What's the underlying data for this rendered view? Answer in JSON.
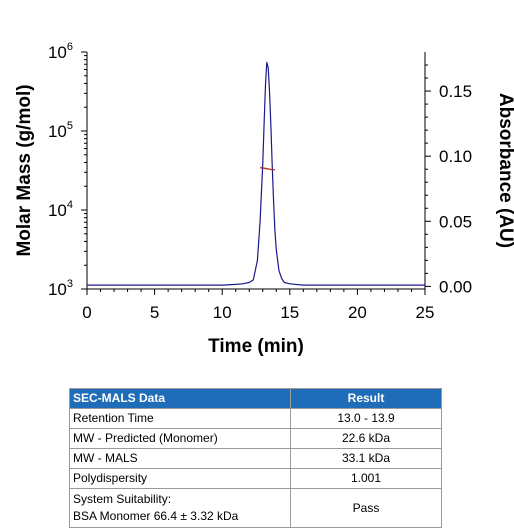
{
  "chart_data": {
    "type": "line",
    "xlabel": "Time (min)",
    "ylabel_left": "Molar Mass (g/mol)",
    "ylabel_right": "Absorbance (AU)",
    "xlim": [
      0,
      25
    ],
    "x_ticks": [
      "0",
      "5",
      "10",
      "15",
      "20",
      "25"
    ],
    "x_tick_values": [
      0,
      5,
      10,
      15,
      20,
      25
    ],
    "ylim_left": [
      1000,
      1000000
    ],
    "y_left_scale": "log",
    "y_left_ticks": [
      {
        "base": "10",
        "exp": "3",
        "value": 1000
      },
      {
        "base": "10",
        "exp": "4",
        "value": 10000
      },
      {
        "base": "10",
        "exp": "5",
        "value": 100000
      },
      {
        "base": "10",
        "exp": "6",
        "value": 1000000
      }
    ],
    "ylim_right": [
      -0.002,
      0.18
    ],
    "y_right_ticks": [
      "0.00",
      "0.05",
      "0.10",
      "0.15"
    ],
    "y_right_tick_values": [
      0.0,
      0.05,
      0.1,
      0.15
    ],
    "grid": false,
    "series": [
      {
        "axis": "right",
        "color": "#1a1a8c",
        "x": [
          0,
          2,
          4,
          6,
          8,
          10,
          11,
          11.5,
          12,
          12.3,
          12.6,
          12.8,
          13.0,
          13.1,
          13.2,
          13.3,
          13.4,
          13.5,
          13.6,
          13.7,
          13.8,
          13.9,
          14.0,
          14.2,
          14.4,
          14.6,
          15.0,
          16,
          18,
          20,
          22,
          25
        ],
        "y": [
          0.001,
          0.001,
          0.001,
          0.001,
          0.001,
          0.001,
          0.0015,
          0.002,
          0.003,
          0.005,
          0.02,
          0.05,
          0.095,
          0.125,
          0.155,
          0.172,
          0.168,
          0.15,
          0.123,
          0.093,
          0.065,
          0.043,
          0.028,
          0.012,
          0.006,
          0.003,
          0.002,
          0.001,
          0.001,
          0.001,
          0.001,
          0.001
        ]
      },
      {
        "axis": "left",
        "color": "#b03a2e",
        "x": [
          12.8,
          13.0,
          13.2,
          13.4,
          13.6,
          13.9
        ],
        "y": [
          34500,
          34000,
          33500,
          33100,
          32700,
          32300
        ]
      }
    ]
  },
  "table": {
    "header": [
      "SEC-MALS Data",
      "Result"
    ],
    "rows": [
      [
        "Retention Time",
        "13.0 - 13.9"
      ],
      [
        "MW - Predicted (Monomer)",
        "22.6 kDa"
      ],
      [
        "MW - MALS",
        "33.1 kDa"
      ],
      [
        "Polydispersity",
        "1.001"
      ]
    ],
    "suitability": {
      "label_line1": "System Suitability:",
      "label_line2": "BSA Monomer 66.4 ± 3.32 kDa",
      "value": "Pass"
    }
  }
}
